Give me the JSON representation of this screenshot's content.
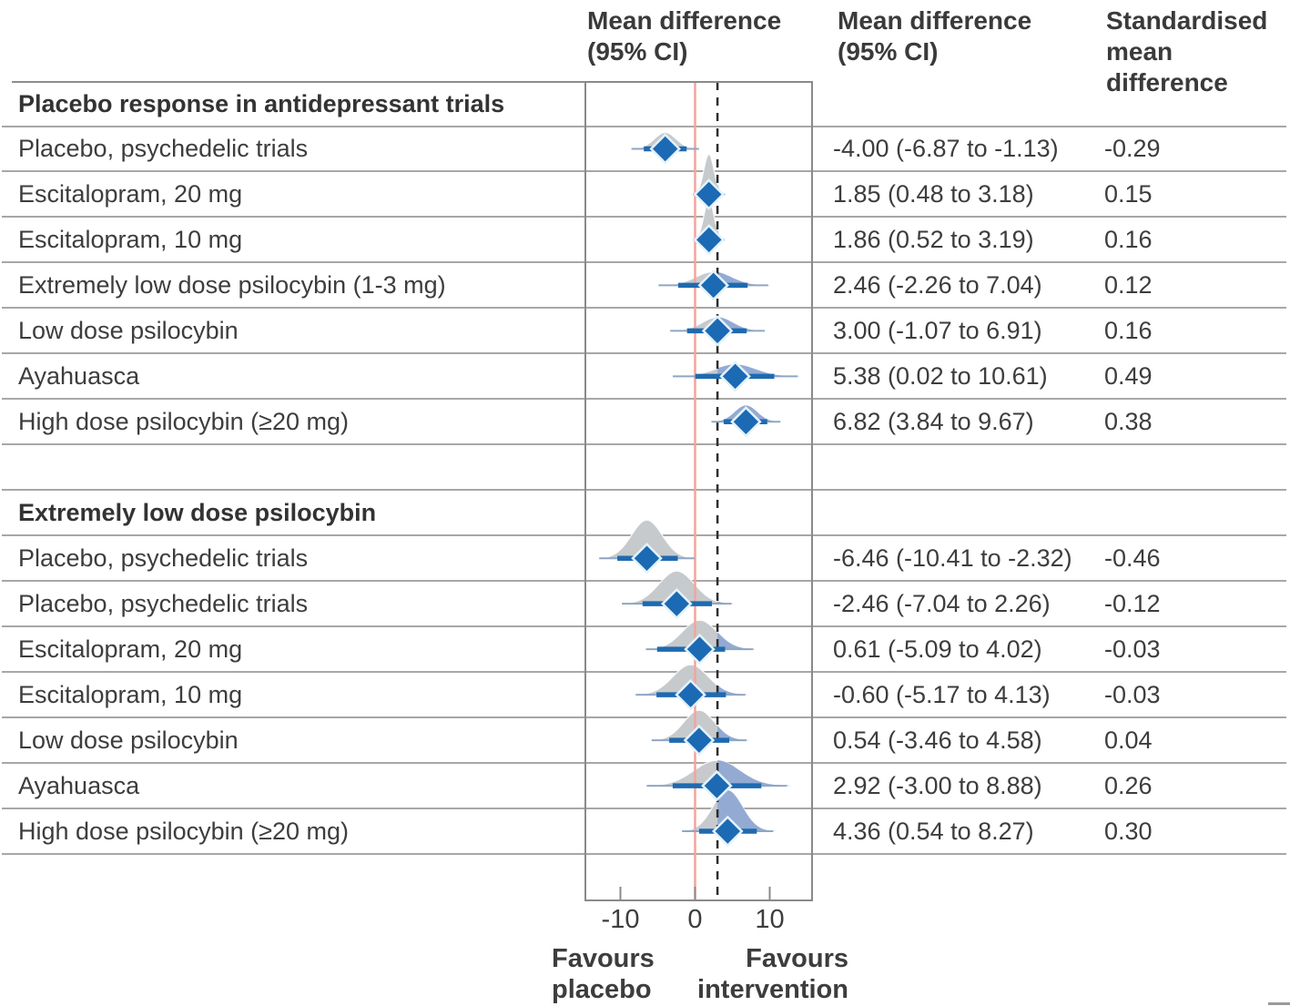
{
  "headers": {
    "plot_col": "Mean difference\n(95% CI)",
    "ci_col": "Mean difference\n(95% CI)",
    "smd_col": "Standardised\nmean\ndifference"
  },
  "axis": {
    "ticks": [
      {
        "value": -10,
        "label": "-10"
      },
      {
        "value": 0,
        "label": "0"
      },
      {
        "value": 10,
        "label": "10"
      }
    ],
    "favours_left": "Favours\nplacebo",
    "favours_right": "Favours\nintervention"
  },
  "colors": {
    "diamond_blue": "#1b6ab3",
    "ci_line_blue": "#1e6ab0",
    "density_gray": "#c7cacc",
    "density_blue": "#90a8d3",
    "zero_line_pink": "#f2a49e",
    "dashed_line": "#2d2d2d",
    "gridline": "#a7a7a7",
    "box_border": "#8a8a8a",
    "text": "#3d3d3d"
  },
  "chart_data": {
    "type": "forest-ridgeline",
    "x_axis": {
      "tick_values": [
        -10,
        0,
        10
      ],
      "range": [
        -14.7,
        15.7
      ]
    },
    "reference_lines": [
      {
        "x": 0,
        "style": "solid",
        "meaning": "zero-line"
      },
      {
        "x": 3.0,
        "style": "dashed",
        "meaning": "reference-threshold"
      }
    ],
    "groups": [
      {
        "title": "Placebo response in antidepressant trials",
        "rows": [
          {
            "label": "Placebo, psychedelic trials",
            "mean": -4.0,
            "lo": -6.87,
            "hi": -1.13,
            "ci_text": "-4.00 (-6.87 to -1.13)",
            "smd": "-0.29",
            "curve_sd": 1.46,
            "curve_h": 18
          },
          {
            "label": "Escitalopram, 20 mg",
            "mean": 1.85,
            "lo": 0.48,
            "hi": 3.18,
            "ci_text": "1.85 (0.48 to 3.18)",
            "smd": "0.15",
            "curve_sd": 0.69,
            "curve_h": 44
          },
          {
            "label": "Escitalopram, 10 mg",
            "mean": 1.86,
            "lo": 0.52,
            "hi": 3.19,
            "ci_text": "1.86 (0.52 to 3.19)",
            "smd": "0.16",
            "curve_sd": 0.68,
            "curve_h": 44
          },
          {
            "label": "Extremely low dose psilocybin (1-3 mg)",
            "mean": 2.46,
            "lo": -2.26,
            "hi": 7.04,
            "ci_text": "2.46 (-2.26 to 7.04)",
            "smd": "0.12",
            "curve_sd": 2.37,
            "curve_h": 15
          },
          {
            "label": "Low dose psilocybin",
            "mean": 3.0,
            "lo": -1.07,
            "hi": 6.91,
            "ci_text": "3.00 (-1.07 to 6.91)",
            "smd": "0.16",
            "curve_sd": 2.04,
            "curve_h": 15
          },
          {
            "label": "Ayahuasca",
            "mean": 5.38,
            "lo": 0.02,
            "hi": 10.61,
            "ci_text": "5.38 (0.02 to 10.61)",
            "smd": "0.49",
            "curve_sd": 2.7,
            "curve_h": 13
          },
          {
            "label": "High dose psilocybin (≥20 mg)",
            "mean": 6.82,
            "lo": 3.84,
            "hi": 9.67,
            "ci_text": "6.82 (3.84 to 9.67)",
            "smd": "0.38",
            "curve_sd": 1.49,
            "curve_h": 18
          }
        ]
      },
      {
        "title": "Extremely low dose psilocybin",
        "rows": [
          {
            "label": "Placebo, psychedelic trials",
            "mean": -6.46,
            "lo": -10.41,
            "hi": -2.32,
            "ci_text": "-6.46 (-10.41 to -2.32)",
            "smd": "-0.46",
            "curve_sd": 2.06,
            "curve_h": 42
          },
          {
            "label": "Placebo, psychedelic trials",
            "mean": -2.46,
            "lo": -7.04,
            "hi": 2.26,
            "ci_text": "-2.46 (-7.04 to 2.26)",
            "smd": "-0.12",
            "curve_sd": 2.37,
            "curve_h": 36
          },
          {
            "label": "Escitalopram, 20 mg",
            "mean": 0.61,
            "lo": -5.09,
            "hi": 4.02,
            "ci_text": "0.61 (-5.09 to 4.02)",
            "smd": "-0.03",
            "curve_sd": 2.32,
            "curve_h": 32
          },
          {
            "label": "Escitalopram, 10 mg",
            "mean": -0.6,
            "lo": -5.17,
            "hi": 4.13,
            "ci_text": "-0.60 (-5.17 to 4.13)",
            "smd": "-0.03",
            "curve_sd": 2.37,
            "curve_h": 33
          },
          {
            "label": "Low dose psilocybin",
            "mean": 0.54,
            "lo": -3.46,
            "hi": 4.58,
            "ci_text": "0.54 (-3.46 to 4.58)",
            "smd": "0.04",
            "curve_sd": 2.05,
            "curve_h": 33
          },
          {
            "label": "Ayahuasca",
            "mean": 2.92,
            "lo": -3.0,
            "hi": 8.88,
            "ci_text": "2.92 (-3.00 to 8.88)",
            "smd": "0.26",
            "curve_sd": 3.03,
            "curve_h": 28
          },
          {
            "label": "High dose psilocybin (≥20 mg)",
            "mean": 4.36,
            "lo": 0.54,
            "hi": 8.27,
            "ci_text": "4.36 (0.54 to 8.27)",
            "smd": "0.30",
            "curve_sd": 1.97,
            "curve_h": 45
          }
        ]
      }
    ]
  }
}
